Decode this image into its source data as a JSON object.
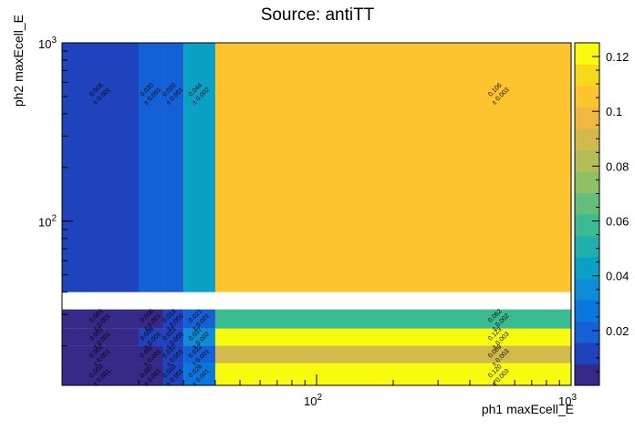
{
  "chart_data": {
    "type": "heatmap",
    "title": "Source: antiTT",
    "xlabel": "ph1 maxEcell_E",
    "ylabel": "ph2 maxEcell_E",
    "x_scale": "log",
    "y_scale": "log",
    "xlim": [
      10,
      1000
    ],
    "ylim": [
      12,
      1000
    ],
    "x_edges": [
      10,
      20,
      25,
      30,
      40,
      1000
    ],
    "y_edges": [
      12,
      16,
      20,
      25,
      32,
      40,
      1000
    ],
    "x_ticks": [
      {
        "value": 100,
        "label": "10^2"
      },
      {
        "value": 1000,
        "label": "10^3"
      }
    ],
    "y_ticks": [
      {
        "value": 100,
        "label": "10^2"
      },
      {
        "value": 1000,
        "label": "10^3"
      }
    ],
    "colorbar": {
      "min": 0.0,
      "max": 0.125,
      "ticks": [
        0.02,
        0.04,
        0.06,
        0.08,
        0.1,
        0.12
      ]
    },
    "cells": [
      {
        "x": 0,
        "y": 0,
        "v": 0.002,
        "e": 0.001,
        "v_label": "0.002",
        "e_label": "± 0.001"
      },
      {
        "x": 1,
        "y": 0,
        "v": 0.007,
        "e": 0.001,
        "v_label": "0.007",
        "e_label": "± 0.001"
      },
      {
        "x": 2,
        "y": 0,
        "v": 0.01,
        "e": 0.001,
        "v_label": "0.010",
        "e_label": "± 0.001"
      },
      {
        "x": 3,
        "y": 0,
        "v": 0.026,
        "e": 0.001,
        "v_label": "0.026",
        "e_label": "± 0.001"
      },
      {
        "x": 4,
        "y": 0,
        "v": 0.12,
        "e": 0.003,
        "v_label": "0.120",
        "e_label": "± 0.003"
      },
      {
        "x": 0,
        "y": 1,
        "v": 0.002,
        "e": 0.001,
        "v_label": "0.002",
        "e_label": "± 0.001"
      },
      {
        "x": 1,
        "y": 1,
        "v": 0.007,
        "e": 0.001,
        "v_label": "0.007",
        "e_label": "± 0.001"
      },
      {
        "x": 2,
        "y": 1,
        "v": 0.01,
        "e": 0.001,
        "v_label": "0.010",
        "e_label": "± 0.001"
      },
      {
        "x": 3,
        "y": 1,
        "v": 0.022,
        "e": 0.001,
        "v_label": "0.022",
        "e_label": "± 0.001"
      },
      {
        "x": 4,
        "y": 1,
        "v": 0.089,
        "e": 0.003,
        "v_label": "0.089",
        "e_label": "± 0.003"
      },
      {
        "x": 0,
        "y": 2,
        "v": 0.003,
        "e": 0.001,
        "v_label": "0.003",
        "e_label": "± 0.001"
      },
      {
        "x": 1,
        "y": 2,
        "v": 0.009,
        "e": 0.001,
        "v_label": "0.009",
        "e_label": "± 0.001"
      },
      {
        "x": 2,
        "y": 2,
        "v": 0.013,
        "e": 0.001,
        "v_label": "0.013",
        "e_label": "± 0.001"
      },
      {
        "x": 3,
        "y": 2,
        "v": 0.037,
        "e": 0.002,
        "v_label": "0.037",
        "e_label": "± 0.002"
      },
      {
        "x": 4,
        "y": 2,
        "v": 0.123,
        "e": 0.003,
        "v_label": "0.123",
        "e_label": "± 0.003"
      },
      {
        "x": 0,
        "y": 3,
        "v": 0.003,
        "e": 0.001,
        "v_label": "0.003",
        "e_label": "± 0.001"
      },
      {
        "x": 1,
        "y": 3,
        "v": 0.006,
        "e": 0.001,
        "v_label": "0.006",
        "e_label": "± 0.001"
      },
      {
        "x": 2,
        "y": 3,
        "v": 0.013,
        "e": 0.001,
        "v_label": "0.013",
        "e_label": "± 0.001"
      },
      {
        "x": 3,
        "y": 3,
        "v": 0.021,
        "e": 0.001,
        "v_label": "0.021",
        "e_label": "± 0.001"
      },
      {
        "x": 4,
        "y": 3,
        "v": 0.062,
        "e": 0.002,
        "v_label": "0.062",
        "e_label": "± 0.002"
      },
      {
        "x": 0,
        "y": 5,
        "v": 0.008,
        "e": 0.001,
        "v_label": "0.008",
        "e_label": "± 0.001"
      },
      {
        "x": 1,
        "y": 5,
        "v": 0.02,
        "e": 0.001,
        "v_label": "0.020",
        "e_label": "± 0.001"
      },
      {
        "x": 2,
        "y": 5,
        "v": 0.02,
        "e": 0.001,
        "v_label": "0.020",
        "e_label": "± 0.001"
      },
      {
        "x": 3,
        "y": 5,
        "v": 0.044,
        "e": 0.002,
        "v_label": "0.044",
        "e_label": "± 0.002"
      },
      {
        "x": 4,
        "y": 5,
        "v": 0.106,
        "e": 0.003,
        "v_label": "0.106",
        "e_label": "± 0.003"
      }
    ],
    "grid": false,
    "colors": {
      "frame": "#000000",
      "background": "#ffffff"
    }
  }
}
